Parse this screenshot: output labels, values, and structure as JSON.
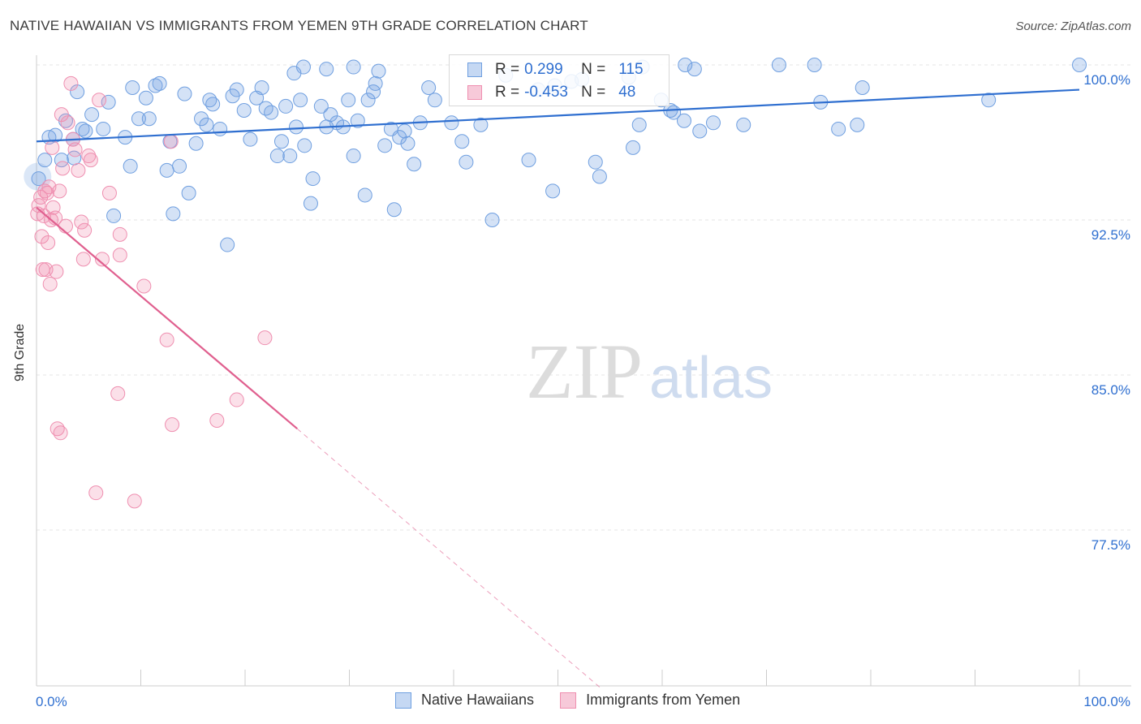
{
  "title": "NATIVE HAWAIIAN VS IMMIGRANTS FROM YEMEN 9TH GRADE CORRELATION CHART",
  "source": "Source: ZipAtlas.com",
  "watermark": {
    "zip": "ZIP",
    "atlas": "atlas"
  },
  "colors": {
    "blue": "#6f9fe0",
    "blue_line": "#2f6fd0",
    "pink": "#ef8fb0",
    "pink_line": "#e0608f",
    "value_text": "#2f6fd0"
  },
  "legend": {
    "rows": [
      {
        "r_label": "R =",
        "r_value": "0.299",
        "n_label": "N =",
        "n_value": "115"
      },
      {
        "r_label": "R =",
        "r_value": "-0.453",
        "n_label": "N =",
        "n_value": "48"
      }
    ]
  },
  "bottom_legend": [
    "Native Hawaiians",
    "Immigrants from Yemen"
  ],
  "chart_data": {
    "type": "scatter",
    "ylabel": "9th Grade",
    "x_tick_labels": [
      "0.0%",
      "100.0%"
    ],
    "y_tick_labels": [
      "100.0%",
      "92.5%",
      "85.0%",
      "77.5%"
    ],
    "y_ticks": [
      100.0,
      92.5,
      85.0,
      77.5
    ],
    "xlim": [
      0,
      105
    ],
    "ylim": [
      70.3,
      100.7
    ],
    "grid": true,
    "legend_position": "top-center",
    "series": [
      {
        "name": "Native Hawaiians",
        "color": "#6f9fe0",
        "trend": {
          "x": [
            0,
            100
          ],
          "y": [
            96.3,
            98.8
          ]
        },
        "points": [
          [
            0.2,
            94.5
          ],
          [
            0.8,
            95.4
          ],
          [
            1.2,
            96.5
          ],
          [
            1.8,
            96.6
          ],
          [
            2.4,
            95.4
          ],
          [
            2.8,
            97.3
          ],
          [
            3.5,
            96.4
          ],
          [
            3.6,
            95.5
          ],
          [
            3.9,
            98.7
          ],
          [
            4.4,
            96.9
          ],
          [
            4.7,
            96.8
          ],
          [
            5.3,
            97.6
          ],
          [
            6.4,
            96.9
          ],
          [
            6.9,
            98.2
          ],
          [
            7.4,
            92.7
          ],
          [
            8.5,
            96.5
          ],
          [
            9.0,
            95.1
          ],
          [
            9.2,
            98.9
          ],
          [
            9.8,
            97.4
          ],
          [
            10.5,
            98.4
          ],
          [
            10.8,
            97.4
          ],
          [
            11.4,
            99.0
          ],
          [
            11.8,
            99.1
          ],
          [
            12.5,
            94.9
          ],
          [
            12.8,
            96.3
          ],
          [
            13.1,
            92.8
          ],
          [
            13.7,
            95.1
          ],
          [
            14.2,
            98.6
          ],
          [
            14.6,
            93.8
          ],
          [
            15.3,
            96.2
          ],
          [
            15.8,
            97.4
          ],
          [
            16.3,
            97.1
          ],
          [
            16.6,
            98.3
          ],
          [
            16.9,
            98.1
          ],
          [
            17.6,
            96.9
          ],
          [
            18.3,
            91.3
          ],
          [
            18.8,
            98.5
          ],
          [
            19.2,
            98.8
          ],
          [
            19.9,
            97.8
          ],
          [
            20.5,
            96.4
          ],
          [
            21.1,
            98.4
          ],
          [
            21.6,
            98.9
          ],
          [
            22.0,
            97.9
          ],
          [
            22.5,
            97.7
          ],
          [
            23.1,
            95.6
          ],
          [
            23.5,
            96.3
          ],
          [
            23.9,
            98.0
          ],
          [
            24.3,
            95.6
          ],
          [
            24.9,
            97.0
          ],
          [
            25.3,
            98.3
          ],
          [
            25.7,
            96.1
          ],
          [
            26.5,
            94.5
          ],
          [
            26.3,
            93.3
          ],
          [
            27.3,
            98.0
          ],
          [
            27.8,
            97.0
          ],
          [
            28.2,
            97.6
          ],
          [
            28.8,
            97.2
          ],
          [
            29.4,
            97.0
          ],
          [
            29.9,
            98.3
          ],
          [
            30.4,
            95.6
          ],
          [
            30.8,
            97.3
          ],
          [
            31.5,
            93.7
          ],
          [
            31.8,
            98.3
          ],
          [
            32.3,
            98.7
          ],
          [
            32.5,
            99.1
          ],
          [
            33.4,
            96.1
          ],
          [
            34.0,
            96.9
          ],
          [
            34.3,
            93.0
          ],
          [
            34.8,
            96.5
          ],
          [
            35.3,
            96.8
          ],
          [
            35.6,
            96.2
          ],
          [
            36.2,
            95.2
          ],
          [
            36.8,
            97.2
          ],
          [
            37.6,
            98.9
          ],
          [
            38.2,
            98.3
          ],
          [
            39.8,
            97.2
          ],
          [
            40.8,
            96.3
          ],
          [
            41.2,
            95.3
          ],
          [
            42.6,
            97.1
          ],
          [
            43.7,
            92.5
          ],
          [
            45.0,
            99.5
          ],
          [
            47.2,
            95.4
          ],
          [
            48.1,
            98.8
          ],
          [
            49.5,
            93.9
          ],
          [
            49.7,
            99.0
          ],
          [
            51.3,
            99.2
          ],
          [
            52.3,
            99.3
          ],
          [
            53.6,
            95.3
          ],
          [
            54.0,
            94.6
          ],
          [
            56.8,
            99.4
          ],
          [
            57.2,
            96.0
          ],
          [
            57.8,
            97.1
          ],
          [
            59.9,
            98.3
          ],
          [
            60.8,
            97.8
          ],
          [
            61.1,
            97.7
          ],
          [
            62.1,
            97.3
          ],
          [
            63.6,
            96.8
          ],
          [
            64.9,
            97.2
          ],
          [
            67.8,
            97.1
          ],
          [
            75.2,
            98.2
          ],
          [
            76.9,
            96.9
          ],
          [
            78.7,
            97.1
          ],
          [
            79.2,
            98.9
          ],
          [
            91.3,
            98.3
          ],
          [
            100.0,
            100.0
          ],
          [
            24.7,
            99.6
          ],
          [
            25.6,
            99.9
          ],
          [
            27.8,
            99.8
          ],
          [
            30.4,
            99.9
          ],
          [
            32.8,
            99.7
          ],
          [
            58.1,
            99.9
          ],
          [
            71.2,
            100.0
          ],
          [
            74.6,
            100.0
          ],
          [
            62.2,
            100.0
          ],
          [
            63.1,
            99.8
          ]
        ]
      },
      {
        "name": "Immigrants from Yemen",
        "color": "#ef8fb0",
        "trend": {
          "x": [
            0,
            25
          ],
          "y": [
            93.1,
            82.4
          ]
        },
        "trend_dashed": {
          "x": [
            25,
            54
          ],
          "y": [
            82.4,
            69.9
          ]
        },
        "points": [
          [
            0.1,
            92.8
          ],
          [
            0.2,
            93.2
          ],
          [
            0.4,
            93.6
          ],
          [
            0.5,
            91.7
          ],
          [
            0.6,
            90.1
          ],
          [
            0.7,
            92.7
          ],
          [
            0.9,
            90.1
          ],
          [
            1.0,
            93.8
          ],
          [
            1.1,
            91.4
          ],
          [
            1.2,
            94.1
          ],
          [
            1.3,
            89.4
          ],
          [
            1.4,
            92.5
          ],
          [
            1.5,
            96.0
          ],
          [
            1.6,
            93.1
          ],
          [
            1.8,
            92.6
          ],
          [
            1.9,
            90.0
          ],
          [
            2.0,
            82.4
          ],
          [
            2.2,
            93.9
          ],
          [
            2.3,
            82.2
          ],
          [
            2.4,
            97.6
          ],
          [
            2.5,
            95.0
          ],
          [
            2.8,
            92.2
          ],
          [
            3.0,
            97.2
          ],
          [
            3.3,
            99.1
          ],
          [
            3.5,
            96.4
          ],
          [
            3.7,
            95.9
          ],
          [
            4.0,
            94.9
          ],
          [
            4.3,
            92.4
          ],
          [
            4.5,
            90.6
          ],
          [
            4.6,
            92.0
          ],
          [
            5.0,
            95.6
          ],
          [
            5.2,
            95.4
          ],
          [
            5.7,
            79.3
          ],
          [
            6.0,
            98.3
          ],
          [
            6.3,
            90.6
          ],
          [
            7.0,
            93.8
          ],
          [
            7.8,
            84.1
          ],
          [
            8.0,
            91.8
          ],
          [
            8.0,
            90.8
          ],
          [
            9.4,
            78.9
          ],
          [
            10.3,
            89.3
          ],
          [
            12.5,
            86.7
          ],
          [
            12.9,
            96.3
          ],
          [
            13.0,
            82.6
          ],
          [
            17.3,
            82.8
          ],
          [
            19.2,
            83.8
          ],
          [
            21.9,
            86.8
          ],
          [
            0.8,
            93.9
          ]
        ]
      }
    ]
  }
}
